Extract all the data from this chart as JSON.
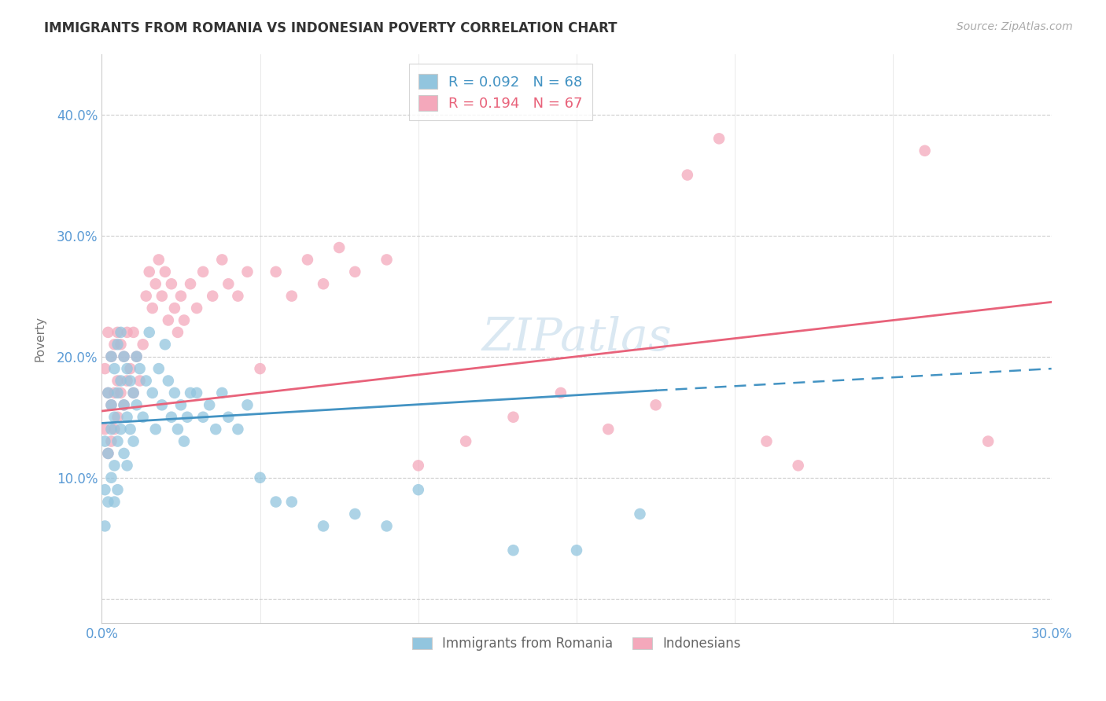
{
  "title": "IMMIGRANTS FROM ROMANIA VS INDONESIAN POVERTY CORRELATION CHART",
  "source_text": "Source: ZipAtlas.com",
  "ylabel": "Poverty",
  "xlim": [
    0.0,
    0.3
  ],
  "ylim": [
    -0.02,
    0.45
  ],
  "xticks": [
    0.0,
    0.05,
    0.1,
    0.15,
    0.2,
    0.25,
    0.3
  ],
  "xticklabels": [
    "0.0%",
    "",
    "",
    "",
    "",
    "",
    "30.0%"
  ],
  "yticks": [
    0.0,
    0.1,
    0.2,
    0.3,
    0.4
  ],
  "yticklabels": [
    "",
    "10.0%",
    "20.0%",
    "30.0%",
    "40.0%"
  ],
  "legend1_label": "R = 0.092   N = 68",
  "legend2_label": "R = 0.194   N = 67",
  "legend1_series": "Immigrants from Romania",
  "legend2_series": "Indonesians",
  "color_blue": "#92c5de",
  "color_pink": "#f4a8bb",
  "color_blue_line": "#4393c3",
  "color_pink_line": "#e8627a",
  "color_axis_text": "#5b9bd5",
  "color_grid": "#cccccc",
  "watermark": "ZIPatlas",
  "romania_x": [
    0.001,
    0.001,
    0.001,
    0.002,
    0.002,
    0.002,
    0.003,
    0.003,
    0.003,
    0.003,
    0.004,
    0.004,
    0.004,
    0.004,
    0.005,
    0.005,
    0.005,
    0.005,
    0.006,
    0.006,
    0.006,
    0.007,
    0.007,
    0.007,
    0.008,
    0.008,
    0.008,
    0.009,
    0.009,
    0.01,
    0.01,
    0.011,
    0.011,
    0.012,
    0.013,
    0.014,
    0.015,
    0.016,
    0.017,
    0.018,
    0.019,
    0.02,
    0.021,
    0.022,
    0.023,
    0.024,
    0.025,
    0.026,
    0.027,
    0.028,
    0.03,
    0.032,
    0.034,
    0.036,
    0.038,
    0.04,
    0.043,
    0.046,
    0.05,
    0.055,
    0.06,
    0.07,
    0.08,
    0.09,
    0.1,
    0.13,
    0.15,
    0.17
  ],
  "romania_y": [
    0.13,
    0.09,
    0.06,
    0.17,
    0.12,
    0.08,
    0.2,
    0.16,
    0.14,
    0.1,
    0.19,
    0.15,
    0.11,
    0.08,
    0.21,
    0.17,
    0.13,
    0.09,
    0.22,
    0.18,
    0.14,
    0.2,
    0.16,
    0.12,
    0.19,
    0.15,
    0.11,
    0.18,
    0.14,
    0.17,
    0.13,
    0.2,
    0.16,
    0.19,
    0.15,
    0.18,
    0.22,
    0.17,
    0.14,
    0.19,
    0.16,
    0.21,
    0.18,
    0.15,
    0.17,
    0.14,
    0.16,
    0.13,
    0.15,
    0.17,
    0.17,
    0.15,
    0.16,
    0.14,
    0.17,
    0.15,
    0.14,
    0.16,
    0.1,
    0.08,
    0.08,
    0.06,
    0.07,
    0.06,
    0.09,
    0.04,
    0.04,
    0.07
  ],
  "indonesian_x": [
    0.001,
    0.001,
    0.002,
    0.002,
    0.002,
    0.003,
    0.003,
    0.003,
    0.004,
    0.004,
    0.004,
    0.005,
    0.005,
    0.005,
    0.006,
    0.006,
    0.007,
    0.007,
    0.008,
    0.008,
    0.009,
    0.01,
    0.01,
    0.011,
    0.012,
    0.013,
    0.014,
    0.015,
    0.016,
    0.017,
    0.018,
    0.019,
    0.02,
    0.021,
    0.022,
    0.023,
    0.024,
    0.025,
    0.026,
    0.028,
    0.03,
    0.032,
    0.035,
    0.038,
    0.04,
    0.043,
    0.046,
    0.05,
    0.055,
    0.06,
    0.065,
    0.07,
    0.075,
    0.08,
    0.09,
    0.1,
    0.115,
    0.13,
    0.145,
    0.16,
    0.175,
    0.185,
    0.195,
    0.21,
    0.22,
    0.26,
    0.28
  ],
  "indonesian_y": [
    0.19,
    0.14,
    0.22,
    0.17,
    0.12,
    0.2,
    0.16,
    0.13,
    0.21,
    0.17,
    0.14,
    0.22,
    0.18,
    0.15,
    0.21,
    0.17,
    0.2,
    0.16,
    0.22,
    0.18,
    0.19,
    0.22,
    0.17,
    0.2,
    0.18,
    0.21,
    0.25,
    0.27,
    0.24,
    0.26,
    0.28,
    0.25,
    0.27,
    0.23,
    0.26,
    0.24,
    0.22,
    0.25,
    0.23,
    0.26,
    0.24,
    0.27,
    0.25,
    0.28,
    0.26,
    0.25,
    0.27,
    0.19,
    0.27,
    0.25,
    0.28,
    0.26,
    0.29,
    0.27,
    0.28,
    0.11,
    0.13,
    0.15,
    0.17,
    0.14,
    0.16,
    0.35,
    0.38,
    0.13,
    0.11,
    0.37,
    0.13
  ],
  "blue_line_x_start": 0.0,
  "blue_line_x_solid_end": 0.175,
  "blue_line_x_end": 0.3,
  "blue_line_y_start": 0.145,
  "blue_line_y_solid_end": 0.172,
  "blue_line_y_end": 0.19,
  "pink_line_x_start": 0.0,
  "pink_line_x_end": 0.3,
  "pink_line_y_start": 0.155,
  "pink_line_y_end": 0.245
}
